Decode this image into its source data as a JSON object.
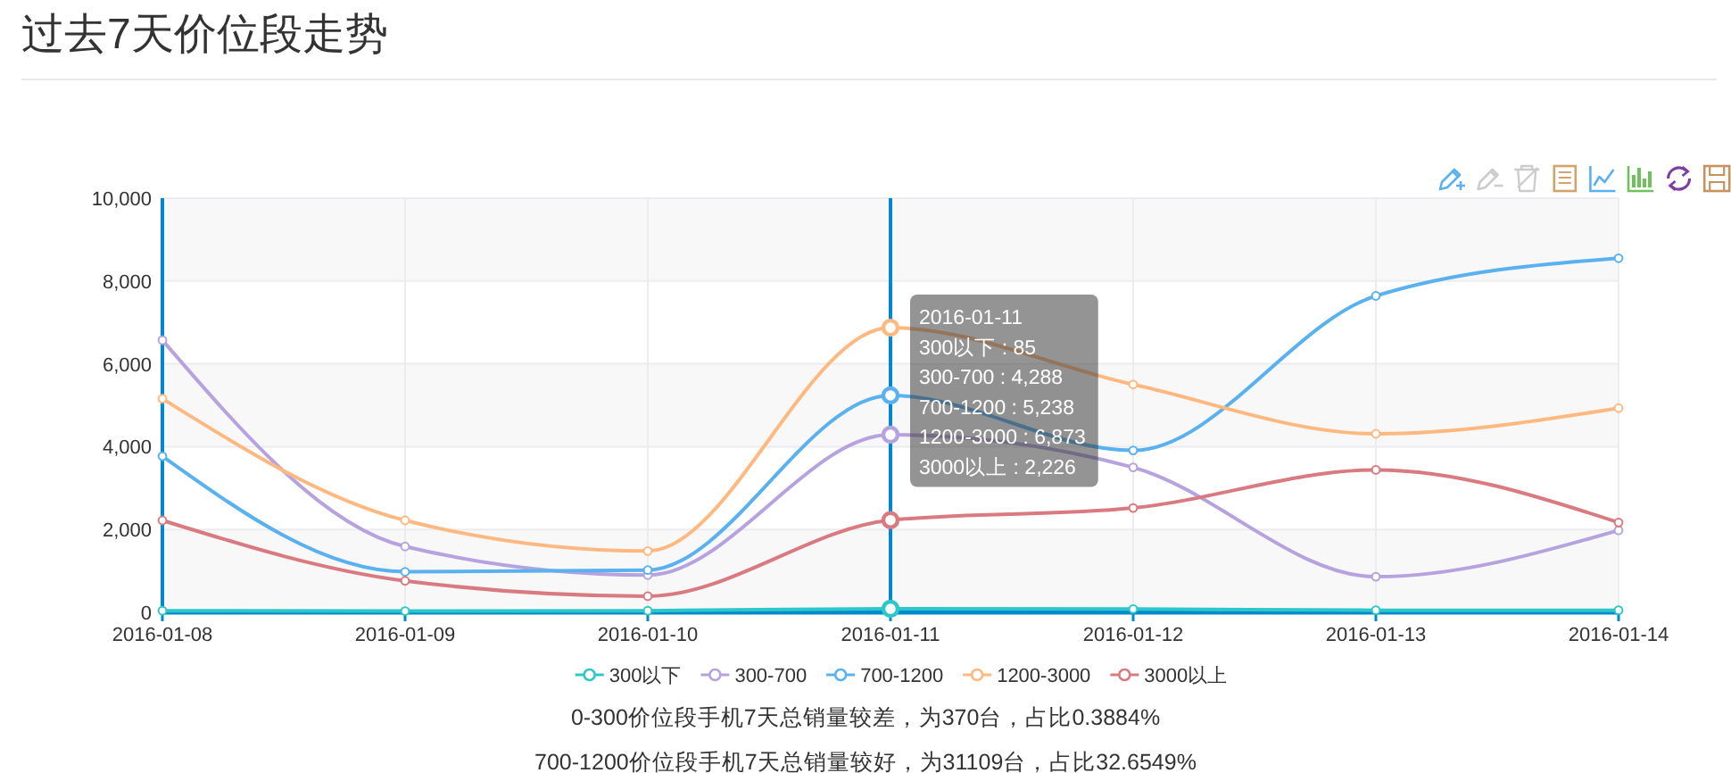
{
  "chart_data": {
    "type": "line",
    "title": "过去7天价位段走势",
    "categories": [
      "2016-01-08",
      "2016-01-09",
      "2016-01-10",
      "2016-01-11",
      "2016-01-12",
      "2016-01-13",
      "2016-01-14"
    ],
    "series": [
      {
        "name": "300以下",
        "color": "#2ec7c9",
        "values": [
          40,
          30,
          40,
          85,
          80,
          50,
          50
        ]
      },
      {
        "name": "300-700",
        "color": "#b6a2de",
        "values": [
          6570,
          1590,
          900,
          4288,
          3500,
          860,
          1980
        ]
      },
      {
        "name": "700-1200",
        "color": "#5ab1ef",
        "values": [
          3770,
          980,
          1020,
          5238,
          3910,
          7640,
          8550
        ]
      },
      {
        "name": "1200-3000",
        "color": "#ffb980",
        "values": [
          5160,
          2220,
          1480,
          6873,
          5500,
          4310,
          4930
        ]
      },
      {
        "name": "3000以上",
        "color": "#d87a80",
        "values": [
          2220,
          760,
          390,
          2226,
          2520,
          3440,
          2170
        ]
      }
    ],
    "ylim": [
      0,
      10000
    ],
    "yticks": [
      0,
      {
        "value": 2000,
        "label": "2,000"
      },
      {
        "value": 4000,
        "label": "4,000"
      },
      {
        "value": 6000,
        "label": "6,000"
      },
      {
        "value": 8000,
        "label": "8,000"
      },
      {
        "value": 10000,
        "label": "10,000"
      }
    ],
    "grid": true,
    "legend": "bottom",
    "marker": "circle",
    "line_style": "solid",
    "ref_lines": [
      {
        "axis": "x",
        "value": "2016-01-11",
        "color": "#008acd"
      }
    ],
    "annotations": [
      {
        "text": "2016-01-11\n300以下 : 85\n300-700 : 4,288\n700-1200 : 5,238\n1200-3000 : 6,873\n3000以上 : 2,226",
        "x": "2016-01-11"
      },
      "0-300价位段手机7天总销量较差，为370台，占比0.3884%",
      "700-1200价位段手机7天总销量较好，为31109台，占比32.6549%"
    ]
  }
}
